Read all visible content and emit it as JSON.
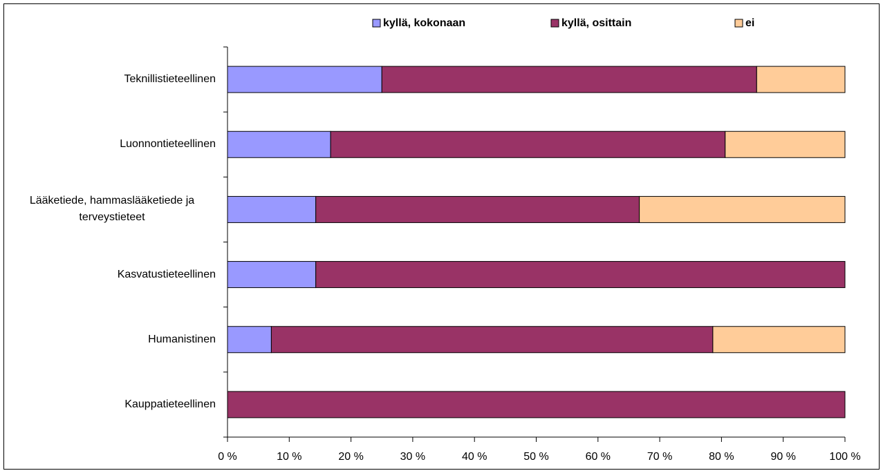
{
  "chart_data": {
    "type": "stacked_barh",
    "categories": [
      "Teknillistieteellinen",
      "Luonnontieteellinen",
      "Lääketiede, hammaslääketiede ja terveystieteet",
      "Kasvatustieteellinen",
      "Humanistinen",
      "Kauppatieteellinen"
    ],
    "series": [
      {
        "name": "kyllä, kokonaan",
        "color": "#9999ff",
        "values": [
          25,
          16.7,
          14.3,
          14.3,
          7.1,
          0
        ]
      },
      {
        "name": "kyllä, osittain",
        "color": "#993366",
        "values": [
          60.7,
          63.9,
          52.4,
          85.7,
          71.5,
          100
        ]
      },
      {
        "name": "ei",
        "color": "#ffcc99",
        "values": [
          14.3,
          19.4,
          33.3,
          0,
          21.4,
          0
        ]
      }
    ],
    "xlim": [
      0,
      100
    ],
    "xticks": [
      {
        "value": 0,
        "label": "0 %"
      },
      {
        "value": 10,
        "label": "10 %"
      },
      {
        "value": 20,
        "label": "20 %"
      },
      {
        "value": 30,
        "label": "30 %"
      },
      {
        "value": 40,
        "label": "40 %"
      },
      {
        "value": 50,
        "label": "50 %"
      },
      {
        "value": 60,
        "label": "60 %"
      },
      {
        "value": 70,
        "label": "70 %"
      },
      {
        "value": 80,
        "label": "80 %"
      },
      {
        "value": 90,
        "label": "90 %"
      },
      {
        "value": 100,
        "label": "100 %"
      }
    ],
    "legend": "top"
  }
}
